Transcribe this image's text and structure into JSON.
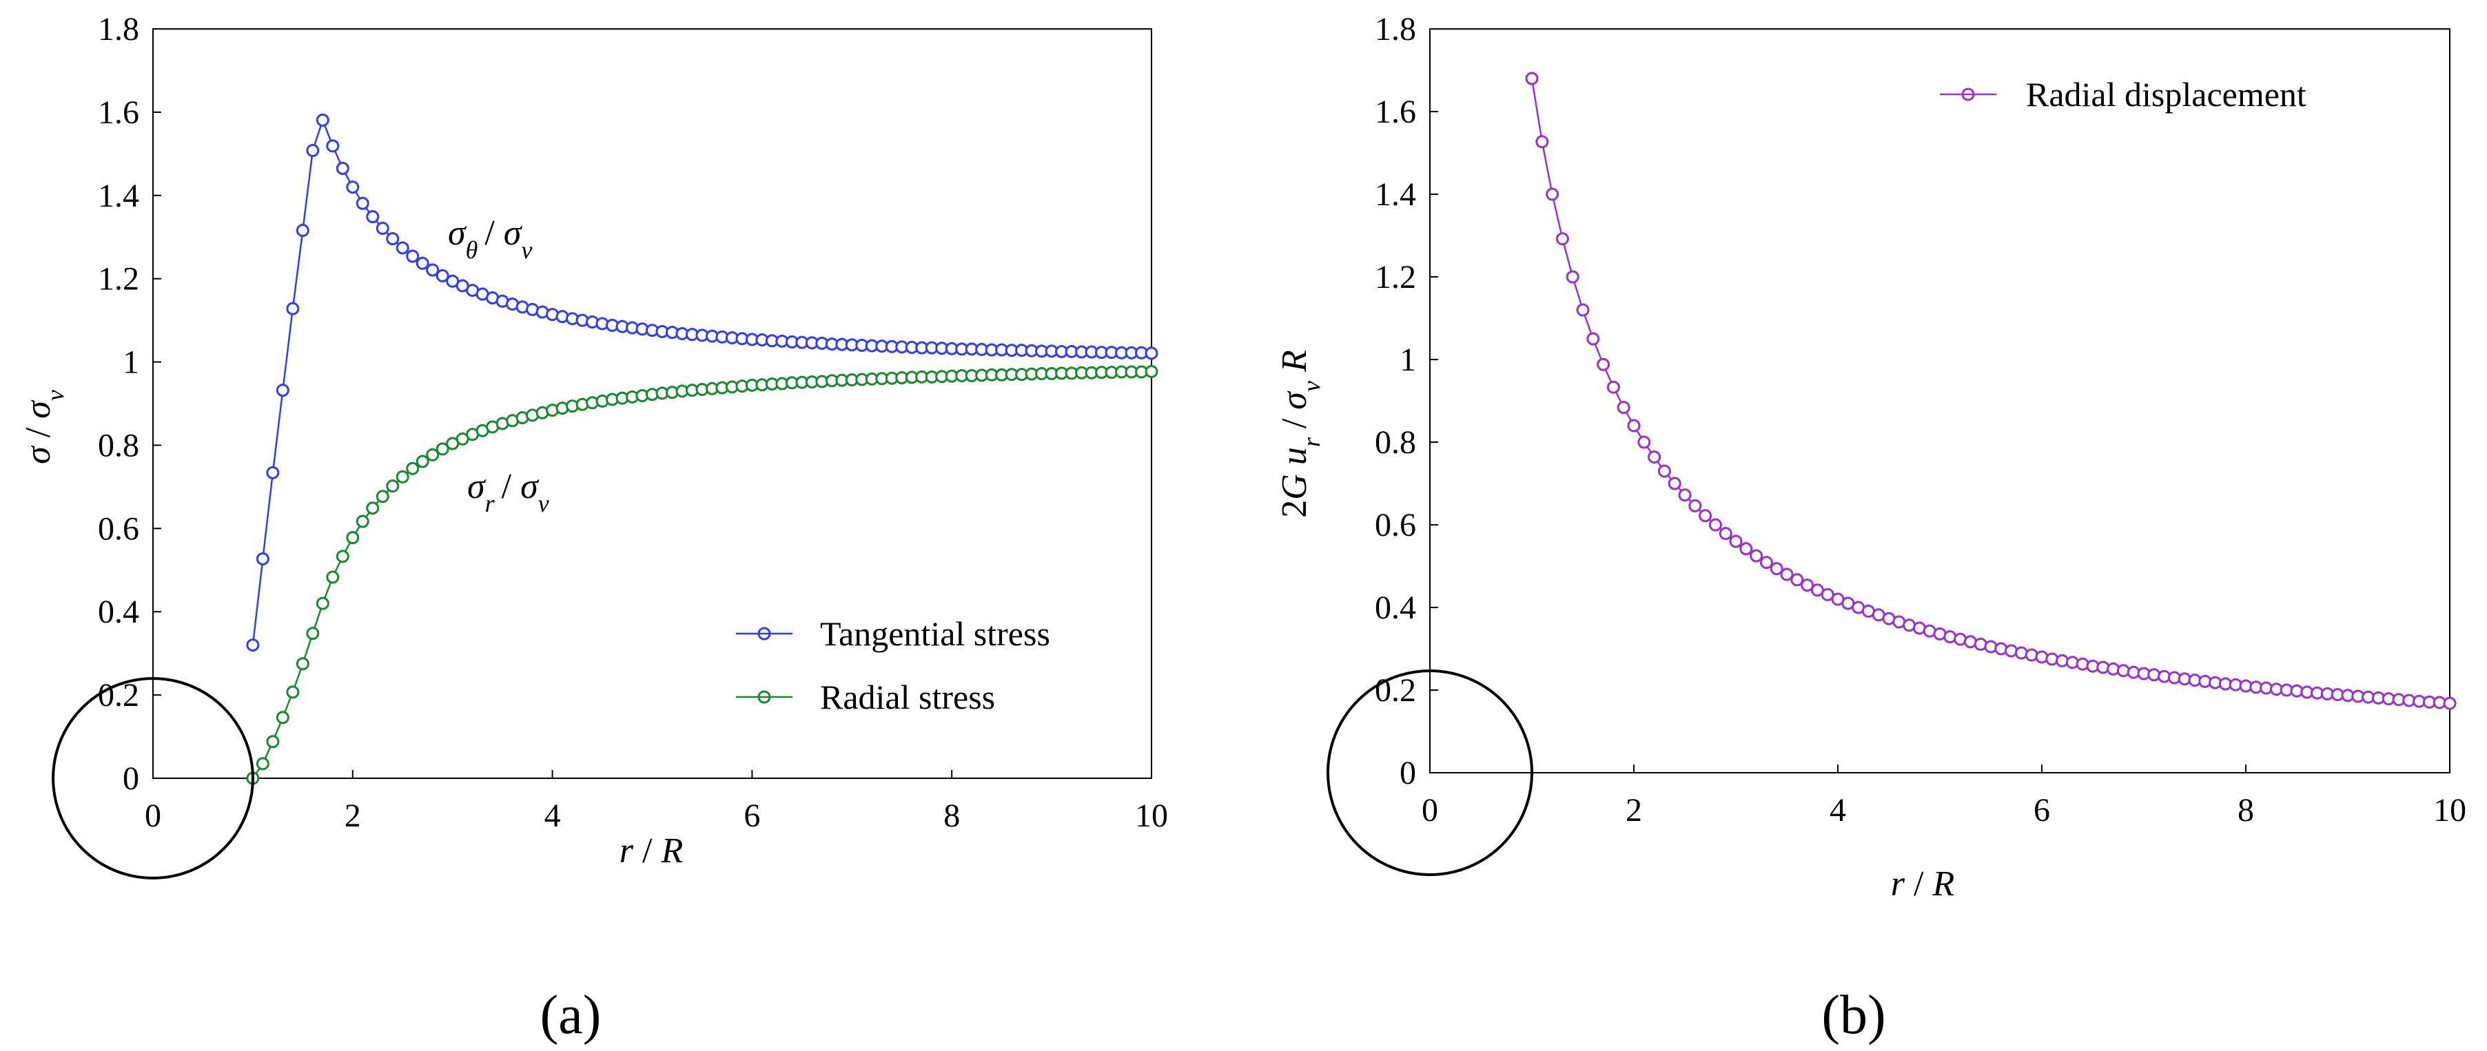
{
  "chart_data": [
    {
      "type": "line",
      "panel_label": "(a)",
      "title": "",
      "xlabel": "r  /  R",
      "ylabel": "σ / σv",
      "xlim": [
        0,
        10
      ],
      "ylim": [
        0,
        1.8
      ],
      "x_ticks": [
        "0",
        "2",
        "4",
        "6",
        "8",
        "10"
      ],
      "y_ticks": [
        "0",
        "0.2",
        "0.4",
        "0.6",
        "0.8",
        "1",
        "1.2",
        "1.4",
        "1.6",
        "1.8"
      ],
      "annotations": {
        "tangential": {
          "base": "σ",
          "sub": "θ",
          "slash": "/",
          "den": "σ",
          "den_sub": "v"
        },
        "radial": {
          "base": "σ",
          "sub": "r",
          "slash": "/",
          "den": "σ",
          "den_sub": "v"
        }
      },
      "series": [
        {
          "name": "Tangential stress",
          "color": "#2f3bff",
          "x": [
            1.0,
            1.1,
            1.2,
            1.3,
            1.4,
            1.5,
            1.6,
            1.7,
            1.8,
            1.9,
            2.0,
            2.1,
            2.2,
            2.3,
            2.4,
            2.5,
            2.6,
            2.7,
            2.8,
            2.9,
            3.0,
            3.1,
            3.2,
            3.3,
            3.4,
            3.5,
            3.6,
            3.7,
            3.8,
            3.9,
            4.0,
            4.1,
            4.2,
            4.3,
            4.4,
            4.5,
            4.6,
            4.7,
            4.8,
            4.9,
            5.0,
            5.1,
            5.2,
            5.3,
            5.4,
            5.5,
            5.6,
            5.7,
            5.8,
            5.9,
            6.0,
            6.1,
            6.2,
            6.3,
            6.4,
            6.5,
            6.6,
            6.7,
            6.8,
            6.9,
            7.0,
            7.1,
            7.2,
            7.3,
            7.4,
            7.5,
            7.6,
            7.7,
            7.8,
            7.9,
            8.0,
            8.1,
            8.2,
            8.3,
            8.4,
            8.5,
            8.6,
            8.7,
            8.8,
            8.9,
            9.0,
            9.1,
            9.2,
            9.3,
            9.4,
            9.5,
            9.6,
            9.7,
            9.8,
            9.9,
            10.0
          ],
          "y": [
            0.32,
            0.527,
            0.734,
            0.932,
            1.128,
            1.316,
            1.508,
            1.581,
            1.519,
            1.465,
            1.42,
            1.381,
            1.349,
            1.321,
            1.296,
            1.274,
            1.254,
            1.237,
            1.221,
            1.207,
            1.194,
            1.183,
            1.172,
            1.163,
            1.154,
            1.146,
            1.139,
            1.132,
            1.126,
            1.12,
            1.114,
            1.109,
            1.104,
            1.1,
            1.096,
            1.092,
            1.088,
            1.085,
            1.082,
            1.079,
            1.076,
            1.073,
            1.071,
            1.068,
            1.066,
            1.064,
            1.062,
            1.06,
            1.058,
            1.056,
            1.054,
            1.053,
            1.051,
            1.05,
            1.048,
            1.047,
            1.046,
            1.045,
            1.043,
            1.042,
            1.041,
            1.04,
            1.039,
            1.038,
            1.037,
            1.036,
            1.035,
            1.034,
            1.034,
            1.033,
            1.032,
            1.031,
            1.031,
            1.03,
            1.029,
            1.029,
            1.028,
            1.028,
            1.027,
            1.026,
            1.026,
            1.025,
            1.025,
            1.024,
            1.024,
            1.023,
            1.023,
            1.022,
            1.022,
            1.022,
            1.021
          ]
        },
        {
          "name": "Radial stress",
          "color": "#178a2e",
          "x": [
            1.0,
            1.1,
            1.2,
            1.3,
            1.4,
            1.5,
            1.6,
            1.7,
            1.8,
            1.9,
            2.0,
            2.1,
            2.2,
            2.3,
            2.4,
            2.5,
            2.6,
            2.7,
            2.8,
            2.9,
            3.0,
            3.1,
            3.2,
            3.3,
            3.4,
            3.5,
            3.6,
            3.7,
            3.8,
            3.9,
            4.0,
            4.1,
            4.2,
            4.3,
            4.4,
            4.5,
            4.6,
            4.7,
            4.8,
            4.9,
            5.0,
            5.1,
            5.2,
            5.3,
            5.4,
            5.5,
            5.6,
            5.7,
            5.8,
            5.9,
            6.0,
            6.1,
            6.2,
            6.3,
            6.4,
            6.5,
            6.6,
            6.7,
            6.8,
            6.9,
            7.0,
            7.1,
            7.2,
            7.3,
            7.4,
            7.5,
            7.6,
            7.7,
            7.8,
            7.9,
            8.0,
            8.1,
            8.2,
            8.3,
            8.4,
            8.5,
            8.6,
            8.7,
            8.8,
            8.9,
            9.0,
            9.1,
            9.2,
            9.3,
            9.4,
            9.5,
            9.6,
            9.7,
            9.8,
            9.9,
            10.0
          ],
          "y": [
            0.0,
            0.035,
            0.088,
            0.146,
            0.207,
            0.275,
            0.348,
            0.42,
            0.483,
            0.533,
            0.578,
            0.617,
            0.649,
            0.677,
            0.702,
            0.724,
            0.744,
            0.761,
            0.777,
            0.791,
            0.804,
            0.815,
            0.826,
            0.835,
            0.844,
            0.852,
            0.859,
            0.866,
            0.872,
            0.878,
            0.884,
            0.889,
            0.894,
            0.898,
            0.902,
            0.906,
            0.91,
            0.913,
            0.916,
            0.919,
            0.922,
            0.925,
            0.927,
            0.93,
            0.932,
            0.934,
            0.936,
            0.938,
            0.94,
            0.942,
            0.944,
            0.945,
            0.947,
            0.948,
            0.95,
            0.951,
            0.952,
            0.953,
            0.955,
            0.956,
            0.957,
            0.958,
            0.959,
            0.96,
            0.961,
            0.962,
            0.963,
            0.964,
            0.964,
            0.965,
            0.966,
            0.967,
            0.967,
            0.968,
            0.969,
            0.969,
            0.97,
            0.97,
            0.971,
            0.972,
            0.972,
            0.973,
            0.973,
            0.974,
            0.974,
            0.975,
            0.975,
            0.976,
            0.976,
            0.976,
            0.977
          ]
        }
      ],
      "legend": {
        "position": "lower-right",
        "entries": [
          "Tangential stress",
          "Radial stress"
        ]
      }
    },
    {
      "type": "line",
      "panel_label": "(b)",
      "title": "",
      "xlabel": "r  /  R",
      "ylabel": "2G ur / σv R",
      "xlim": [
        0,
        10
      ],
      "ylim": [
        0,
        1.8
      ],
      "x_ticks": [
        "0",
        "2",
        "4",
        "6",
        "8",
        "10"
      ],
      "y_ticks": [
        "0",
        "0.2",
        "0.4",
        "0.6",
        "0.8",
        "1",
        "1.2",
        "1.4",
        "1.6",
        "1.8"
      ],
      "series": [
        {
          "name": "Radial displacement",
          "color": "#9b2fd6",
          "x": [
            1.0,
            1.1,
            1.2,
            1.3,
            1.4,
            1.5,
            1.6,
            1.7,
            1.8,
            1.9,
            2.0,
            2.1,
            2.2,
            2.3,
            2.4,
            2.5,
            2.6,
            2.7,
            2.8,
            2.9,
            3.0,
            3.1,
            3.2,
            3.3,
            3.4,
            3.5,
            3.6,
            3.7,
            3.8,
            3.9,
            4.0,
            4.1,
            4.2,
            4.3,
            4.4,
            4.5,
            4.6,
            4.7,
            4.8,
            4.9,
            5.0,
            5.1,
            5.2,
            5.3,
            5.4,
            5.5,
            5.6,
            5.7,
            5.8,
            5.9,
            6.0,
            6.1,
            6.2,
            6.3,
            6.4,
            6.5,
            6.6,
            6.7,
            6.8,
            6.9,
            7.0,
            7.1,
            7.2,
            7.3,
            7.4,
            7.5,
            7.6,
            7.7,
            7.8,
            7.9,
            8.0,
            8.1,
            8.2,
            8.3,
            8.4,
            8.5,
            8.6,
            8.7,
            8.8,
            8.9,
            9.0,
            9.1,
            9.2,
            9.3,
            9.4,
            9.5,
            9.6,
            9.7,
            9.8,
            9.9,
            10.0
          ],
          "y": [
            1.68,
            1.527,
            1.4,
            1.292,
            1.2,
            1.12,
            1.05,
            0.988,
            0.933,
            0.884,
            0.84,
            0.8,
            0.764,
            0.73,
            0.7,
            0.672,
            0.646,
            0.622,
            0.6,
            0.579,
            0.56,
            0.542,
            0.525,
            0.509,
            0.494,
            0.48,
            0.467,
            0.454,
            0.442,
            0.431,
            0.42,
            0.41,
            0.4,
            0.391,
            0.382,
            0.373,
            0.365,
            0.357,
            0.35,
            0.343,
            0.336,
            0.329,
            0.323,
            0.317,
            0.311,
            0.305,
            0.3,
            0.295,
            0.29,
            0.285,
            0.28,
            0.275,
            0.271,
            0.267,
            0.263,
            0.258,
            0.255,
            0.251,
            0.247,
            0.243,
            0.24,
            0.237,
            0.233,
            0.23,
            0.227,
            0.224,
            0.221,
            0.218,
            0.215,
            0.213,
            0.21,
            0.207,
            0.205,
            0.202,
            0.2,
            0.198,
            0.195,
            0.193,
            0.191,
            0.189,
            0.187,
            0.185,
            0.183,
            0.181,
            0.179,
            0.177,
            0.175,
            0.173,
            0.171,
            0.17,
            0.168
          ]
        }
      ],
      "legend": {
        "position": "top-right",
        "entries": [
          "Radial displacement"
        ]
      }
    }
  ],
  "circle_radius_data_units": 1.0
}
